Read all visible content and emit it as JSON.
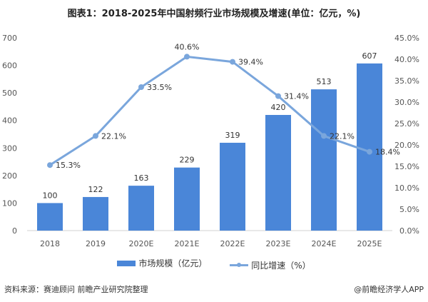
{
  "chart_data": {
    "type": "bar+line",
    "title": "图表1：2018-2025年中国射频行业市场规模及增速(单位：亿元，%)",
    "categories": [
      "2018",
      "2019",
      "2020E",
      "2021E",
      "2022E",
      "2023E",
      "2024E",
      "2025E"
    ],
    "series": [
      {
        "name": "市场规模（亿元）",
        "type": "bar",
        "axis": "left",
        "values": [
          100,
          122,
          163,
          229,
          319,
          420,
          513,
          607
        ],
        "color": "#4a86d8"
      },
      {
        "name": "同比增速（%）",
        "type": "line",
        "axis": "right",
        "values": [
          15.3,
          22.1,
          33.5,
          40.6,
          39.4,
          31.4,
          22.1,
          18.4
        ],
        "color": "#7aa6dc"
      }
    ],
    "left_axis": {
      "ylim": [
        0,
        700
      ],
      "ticks": [
        "0",
        "100",
        "200",
        "300",
        "400",
        "500",
        "600",
        "700"
      ]
    },
    "right_axis": {
      "ylim": [
        0,
        45
      ],
      "ticks": [
        "0.0%",
        "5.0%",
        "10.0%",
        "15.0%",
        "20.0%",
        "25.0%",
        "30.0%",
        "35.0%",
        "40.0%",
        "45.0%"
      ]
    },
    "grid": false,
    "legend": "bottom"
  },
  "source": "资料来源：赛迪顾问 前瞻产业研究院整理",
  "credit": "@前瞻经济学人APP"
}
